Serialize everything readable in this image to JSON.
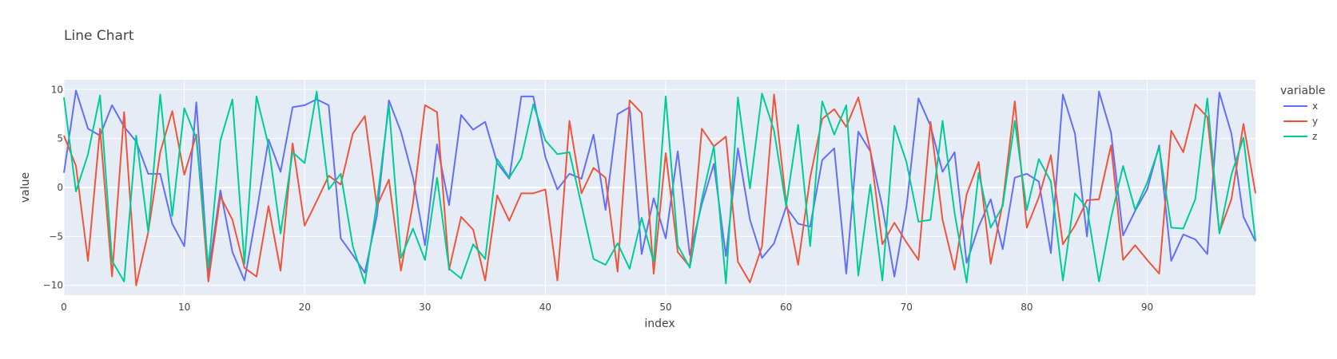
{
  "chart_data": {
    "type": "line",
    "title": "Line Chart",
    "xlabel": "index",
    "ylabel": "value",
    "xlim": [
      0,
      99
    ],
    "ylim": [
      -11,
      11
    ],
    "xticks": [
      0,
      10,
      20,
      30,
      40,
      50,
      60,
      70,
      80,
      90
    ],
    "yticks": [
      -10,
      -5,
      0,
      5,
      10
    ],
    "grid": true,
    "legend": {
      "title": "variable",
      "placement": "right"
    },
    "colors": {
      "plot_bg": "#e5ecf6",
      "grid": "#ffffff"
    },
    "series": [
      {
        "name": "x",
        "color": "#636efa",
        "values": [
          1.5,
          9.9,
          6.0,
          5.3,
          8.4,
          6.2,
          4.7,
          1.4,
          1.4,
          -3.7,
          -6.0,
          8.7,
          -8.8,
          -0.3,
          -6.6,
          -9.5,
          -2.6,
          4.9,
          1.6,
          8.2,
          8.4,
          9.0,
          8.4,
          -5.2,
          -6.9,
          -8.7,
          -2.9,
          8.9,
          5.7,
          1.0,
          -5.9,
          4.4,
          -1.8,
          7.4,
          5.9,
          6.7,
          2.5,
          0.9,
          9.3,
          9.3,
          3.1,
          -0.2,
          1.4,
          0.9,
          5.4,
          -2.3,
          7.5,
          8.2,
          -6.8,
          -1.1,
          -5.2,
          3.7,
          -6.9,
          -1.7,
          2.4,
          -7.0,
          4.0,
          -3.3,
          -7.2,
          -5.7,
          -2.0,
          -3.7,
          -4.0,
          2.8,
          4.0,
          -8.8,
          5.7,
          3.7,
          -2.0,
          -9.1,
          -2.0,
          9.1,
          6.3,
          1.6,
          3.6,
          -7.7,
          -4.0,
          -1.2,
          -6.3,
          1.0,
          1.4,
          0.6,
          -6.7,
          9.5,
          5.5,
          -5.0,
          9.8,
          5.6,
          -4.9,
          -2.4,
          -0.2,
          4.3,
          -7.5,
          -4.8,
          -5.3,
          -6.8,
          9.7,
          5.5,
          -3.0,
          -5.5
        ]
      },
      {
        "name": "y",
        "color": "#ef553b",
        "values": [
          5.3,
          2.2,
          -7.5,
          6.0,
          -9.1,
          7.7,
          -10.0,
          -4.6,
          3.6,
          7.8,
          1.3,
          5.4,
          -9.6,
          -0.9,
          -3.3,
          -8.2,
          -9.1,
          -1.9,
          -8.5,
          4.5,
          -3.9,
          -1.4,
          1.2,
          0.3,
          5.5,
          7.3,
          -1.9,
          0.8,
          -8.5,
          -1.6,
          8.4,
          7.7,
          -8.4,
          -3.0,
          -4.3,
          -9.5,
          -0.8,
          -3.4,
          -0.6,
          -0.6,
          -0.2,
          -9.5,
          6.8,
          -0.6,
          2.0,
          1.0,
          -8.6,
          8.9,
          7.6,
          -8.8,
          3.5,
          -6.6,
          -8.1,
          6.0,
          4.2,
          5.2,
          -7.6,
          -9.7,
          -6.0,
          9.5,
          -1.5,
          -7.9,
          1.0,
          7.0,
          8.0,
          6.2,
          9.2,
          3.8,
          -5.8,
          -3.6,
          -5.6,
          -7.4,
          6.7,
          -3.3,
          -8.4,
          -0.7,
          2.6,
          -7.8,
          -1.6,
          8.8,
          -4.1,
          -1.0,
          3.3,
          -5.8,
          -3.9,
          -1.3,
          -1.2,
          4.3,
          -7.4,
          -5.9,
          -7.4,
          -8.8,
          5.8,
          3.6,
          8.5,
          7.2,
          -4.6,
          -1.2,
          6.5,
          -0.6
        ]
      },
      {
        "name": "z",
        "color": "#00cc96",
        "values": [
          9.2,
          -0.4,
          3.4,
          9.4,
          -7.5,
          -9.6,
          5.3,
          -4.5,
          9.5,
          -2.9,
          8.1,
          5.0,
          -8.2,
          4.8,
          9.0,
          -7.8,
          9.3,
          4.3,
          -4.7,
          3.6,
          2.5,
          9.8,
          -0.2,
          1.4,
          -6.0,
          -9.8,
          -1.6,
          8.4,
          -7.2,
          -4.2,
          -7.4,
          1.0,
          -8.3,
          -9.3,
          -5.8,
          -7.3,
          2.9,
          1.0,
          3.0,
          8.5,
          4.8,
          3.4,
          3.6,
          -1.8,
          -7.3,
          -7.9,
          -5.7,
          -8.3,
          -3.1,
          -7.6,
          9.3,
          -5.9,
          -8.2,
          -1.2,
          4.2,
          -9.8,
          9.2,
          -0.1,
          9.6,
          5.8,
          -1.9,
          6.4,
          -6.0,
          8.8,
          5.4,
          8.4,
          -9.0,
          0.3,
          -9.5,
          6.3,
          2.6,
          -3.5,
          -3.3,
          6.8,
          -2.6,
          -9.7,
          1.5,
          -4.1,
          -1.9,
          6.8,
          -2.3,
          2.9,
          0.6,
          -9.5,
          -0.6,
          -2.1,
          -9.6,
          -3.1,
          2.2,
          -2.3,
          0.5,
          4.1,
          -4.1,
          -4.2,
          -1.2,
          9.1,
          -4.7,
          1.3,
          5.1,
          -5.4
        ]
      }
    ]
  }
}
